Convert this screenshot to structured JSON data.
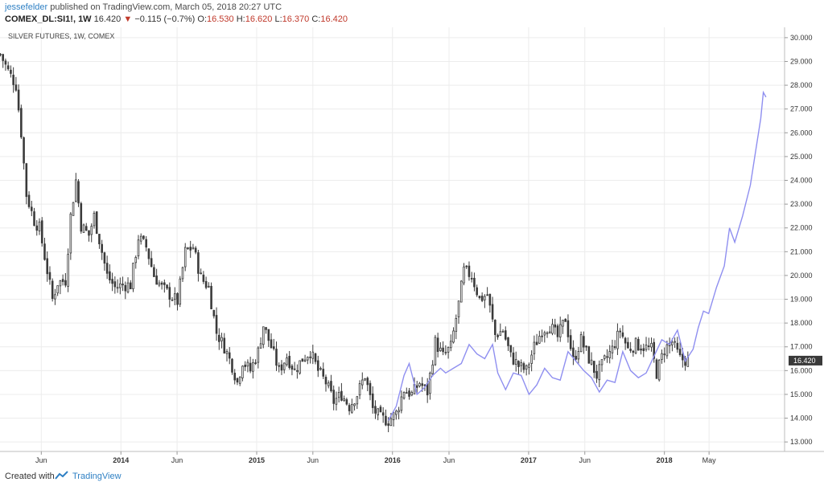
{
  "header": {
    "author": "jessefelder",
    "published_text": "published on TradingView.com, March 05, 2018 20:27 UTC",
    "symbol": "COMEX_DL:SI1!, 1W",
    "last_price": "16.420",
    "change_arrow": "▼",
    "change": "−0.115 (−0.7%)",
    "o_label": "O:",
    "o_value": "16.530",
    "h_label": "H:",
    "h_value": "16.620",
    "l_label": "L:",
    "l_value": "16.370",
    "c_label": "C:",
    "c_value": "16.420"
  },
  "footer": {
    "created_with": "Created with",
    "brand": "TradingView"
  },
  "colors": {
    "candle": "#3a3a3a",
    "overlay_line": "#8f8ff0",
    "grid": "#ececec",
    "last_label_bg": "#3a3a3a"
  },
  "chart_data": {
    "type": "line",
    "title": "SILVER FUTURES, 1W, COMEX",
    "last_value_label": "16.420",
    "ylim": [
      12.6,
      30.3
    ],
    "yticks": [
      "13.000",
      "14.000",
      "15.000",
      "16.000",
      "17.000",
      "18.000",
      "19.000",
      "20.000",
      "21.000",
      "22.000",
      "23.000",
      "24.000",
      "25.000",
      "26.000",
      "27.000",
      "28.000",
      "29.000",
      "30.000"
    ],
    "xticks": [
      {
        "label": "Jun",
        "date": "2013-06-01",
        "bold": false
      },
      {
        "label": "2014",
        "date": "2014-01-01",
        "bold": true
      },
      {
        "label": "Jun",
        "date": "2014-06-01",
        "bold": false
      },
      {
        "label": "2015",
        "date": "2015-01-01",
        "bold": true
      },
      {
        "label": "Jun",
        "date": "2015-06-01",
        "bold": false
      },
      {
        "label": "2016",
        "date": "2016-01-01",
        "bold": true
      },
      {
        "label": "Jun",
        "date": "2016-06-01",
        "bold": false
      },
      {
        "label": "2017",
        "date": "2017-01-01",
        "bold": true
      },
      {
        "label": "Jun",
        "date": "2017-06-01",
        "bold": false
      },
      {
        "label": "2018",
        "date": "2018-01-01",
        "bold": true
      },
      {
        "label": "May",
        "date": "2018-05-01",
        "bold": false
      }
    ],
    "xlim": [
      "2013-02-10",
      "2018-11-20"
    ],
    "grid": true,
    "series": [
      {
        "type": "candlestick",
        "points": [
          {
            "date": "2013-02-11",
            "close": 29.3
          },
          {
            "date": "2013-03-04",
            "close": 28.6
          },
          {
            "date": "2013-03-25",
            "close": 28.0
          },
          {
            "date": "2013-04-08",
            "close": 26.0
          },
          {
            "date": "2013-04-22",
            "close": 23.4
          },
          {
            "date": "2013-05-13",
            "close": 22.3
          },
          {
            "date": "2013-05-27",
            "close": 22.0
          },
          {
            "date": "2013-06-17",
            "close": 20.2
          },
          {
            "date": "2013-07-01",
            "close": 19.0
          },
          {
            "date": "2013-07-15",
            "close": 19.7
          },
          {
            "date": "2013-08-05",
            "close": 19.8
          },
          {
            "date": "2013-08-19",
            "close": 22.5
          },
          {
            "date": "2013-09-02",
            "close": 24.0
          },
          {
            "date": "2013-09-16",
            "close": 22.1
          },
          {
            "date": "2013-10-07",
            "close": 21.7
          },
          {
            "date": "2013-10-21",
            "close": 22.5
          },
          {
            "date": "2013-11-11",
            "close": 21.0
          },
          {
            "date": "2013-11-25",
            "close": 20.0
          },
          {
            "date": "2013-12-16",
            "close": 19.5
          },
          {
            "date": "2014-01-06",
            "close": 19.6
          },
          {
            "date": "2014-01-27",
            "close": 19.6
          },
          {
            "date": "2014-02-17",
            "close": 21.6
          },
          {
            "date": "2014-03-10",
            "close": 21.2
          },
          {
            "date": "2014-03-31",
            "close": 20.0
          },
          {
            "date": "2014-04-21",
            "close": 19.5
          },
          {
            "date": "2014-05-12",
            "close": 19.2
          },
          {
            "date": "2014-06-02",
            "close": 18.9
          },
          {
            "date": "2014-06-23",
            "close": 21.0
          },
          {
            "date": "2014-07-14",
            "close": 21.2
          },
          {
            "date": "2014-08-04",
            "close": 19.9
          },
          {
            "date": "2014-08-25",
            "close": 19.5
          },
          {
            "date": "2014-09-15",
            "close": 17.6
          },
          {
            "date": "2014-10-06",
            "close": 17.0
          },
          {
            "date": "2014-10-27",
            "close": 16.2
          },
          {
            "date": "2014-11-10",
            "close": 15.5
          },
          {
            "date": "2014-11-24",
            "close": 16.4
          },
          {
            "date": "2014-12-15",
            "close": 16.0
          },
          {
            "date": "2015-01-05",
            "close": 16.8
          },
          {
            "date": "2015-01-19",
            "close": 17.9
          },
          {
            "date": "2015-02-09",
            "close": 17.0
          },
          {
            "date": "2015-03-02",
            "close": 16.0
          },
          {
            "date": "2015-03-23",
            "close": 16.6
          },
          {
            "date": "2015-04-13",
            "close": 16.0
          },
          {
            "date": "2015-05-04",
            "close": 16.5
          },
          {
            "date": "2015-05-25",
            "close": 16.8
          },
          {
            "date": "2015-06-15",
            "close": 16.0
          },
          {
            "date": "2015-07-06",
            "close": 15.5
          },
          {
            "date": "2015-07-27",
            "close": 14.7
          },
          {
            "date": "2015-08-17",
            "close": 15.0
          },
          {
            "date": "2015-09-07",
            "close": 14.5
          },
          {
            "date": "2015-09-28",
            "close": 15.0
          },
          {
            "date": "2015-10-19",
            "close": 15.8
          },
          {
            "date": "2015-11-09",
            "close": 14.4
          },
          {
            "date": "2015-11-30",
            "close": 14.0
          },
          {
            "date": "2015-12-21",
            "close": 13.9
          },
          {
            "date": "2016-01-11",
            "close": 14.2
          },
          {
            "date": "2016-02-01",
            "close": 15.2
          },
          {
            "date": "2016-02-22",
            "close": 15.0
          },
          {
            "date": "2016-03-14",
            "close": 15.5
          },
          {
            "date": "2016-04-04",
            "close": 15.1
          },
          {
            "date": "2016-04-25",
            "close": 17.2
          },
          {
            "date": "2016-05-16",
            "close": 16.6
          },
          {
            "date": "2016-06-06",
            "close": 17.0
          },
          {
            "date": "2016-06-27",
            "close": 18.8
          },
          {
            "date": "2016-07-11",
            "close": 20.2
          },
          {
            "date": "2016-08-01",
            "close": 20.0
          },
          {
            "date": "2016-08-22",
            "close": 19.0
          },
          {
            "date": "2016-09-12",
            "close": 19.2
          },
          {
            "date": "2016-10-03",
            "close": 17.5
          },
          {
            "date": "2016-10-24",
            "close": 17.7
          },
          {
            "date": "2016-11-14",
            "close": 16.6
          },
          {
            "date": "2016-12-05",
            "close": 16.2
          },
          {
            "date": "2016-12-26",
            "close": 16.0
          },
          {
            "date": "2017-01-16",
            "close": 17.0
          },
          {
            "date": "2017-02-06",
            "close": 17.7
          },
          {
            "date": "2017-02-27",
            "close": 17.9
          },
          {
            "date": "2017-03-20",
            "close": 17.4
          },
          {
            "date": "2017-04-10",
            "close": 18.2
          },
          {
            "date": "2017-05-01",
            "close": 16.4
          },
          {
            "date": "2017-05-22",
            "close": 17.3
          },
          {
            "date": "2017-06-12",
            "close": 16.5
          },
          {
            "date": "2017-07-03",
            "close": 15.8
          },
          {
            "date": "2017-07-24",
            "close": 16.4
          },
          {
            "date": "2017-08-14",
            "close": 16.9
          },
          {
            "date": "2017-09-04",
            "close": 17.7
          },
          {
            "date": "2017-09-25",
            "close": 16.9
          },
          {
            "date": "2017-10-16",
            "close": 17.1
          },
          {
            "date": "2017-11-06",
            "close": 17.0
          },
          {
            "date": "2017-11-27",
            "close": 16.9
          },
          {
            "date": "2017-12-11",
            "close": 15.9
          },
          {
            "date": "2018-01-01",
            "close": 16.9
          },
          {
            "date": "2018-01-22",
            "close": 17.2
          },
          {
            "date": "2018-02-12",
            "close": 16.5
          },
          {
            "date": "2018-03-05",
            "close": 16.42
          }
        ]
      },
      {
        "type": "line",
        "points": [
          {
            "date": "2015-12-21",
            "value": 13.9
          },
          {
            "date": "2016-01-11",
            "value": 14.5
          },
          {
            "date": "2016-02-01",
            "value": 15.8
          },
          {
            "date": "2016-02-15",
            "value": 16.3
          },
          {
            "date": "2016-03-07",
            "value": 15.0
          },
          {
            "date": "2016-03-28",
            "value": 15.3
          },
          {
            "date": "2016-04-18",
            "value": 15.8
          },
          {
            "date": "2016-05-09",
            "value": 16.1
          },
          {
            "date": "2016-05-23",
            "value": 15.9
          },
          {
            "date": "2016-06-13",
            "value": 16.1
          },
          {
            "date": "2016-07-04",
            "value": 16.3
          },
          {
            "date": "2016-07-25",
            "value": 17.1
          },
          {
            "date": "2016-08-15",
            "value": 16.7
          },
          {
            "date": "2016-09-05",
            "value": 16.5
          },
          {
            "date": "2016-09-26",
            "value": 17.1
          },
          {
            "date": "2016-10-10",
            "value": 15.9
          },
          {
            "date": "2016-10-31",
            "value": 15.2
          },
          {
            "date": "2016-11-21",
            "value": 15.9
          },
          {
            "date": "2016-12-12",
            "value": 15.8
          },
          {
            "date": "2017-01-02",
            "value": 15.0
          },
          {
            "date": "2017-01-23",
            "value": 15.4
          },
          {
            "date": "2017-02-13",
            "value": 16.1
          },
          {
            "date": "2017-03-06",
            "value": 15.7
          },
          {
            "date": "2017-03-27",
            "value": 15.6
          },
          {
            "date": "2017-04-17",
            "value": 16.8
          },
          {
            "date": "2017-05-08",
            "value": 16.4
          },
          {
            "date": "2017-05-29",
            "value": 16.0
          },
          {
            "date": "2017-06-19",
            "value": 15.7
          },
          {
            "date": "2017-07-10",
            "value": 15.1
          },
          {
            "date": "2017-07-31",
            "value": 15.6
          },
          {
            "date": "2017-08-21",
            "value": 15.5
          },
          {
            "date": "2017-09-11",
            "value": 16.8
          },
          {
            "date": "2017-10-02",
            "value": 16.0
          },
          {
            "date": "2017-10-23",
            "value": 15.7
          },
          {
            "date": "2017-11-13",
            "value": 15.9
          },
          {
            "date": "2017-12-04",
            "value": 16.6
          },
          {
            "date": "2017-12-25",
            "value": 17.3
          },
          {
            "date": "2018-01-15",
            "value": 17.1
          },
          {
            "date": "2018-02-05",
            "value": 17.7
          },
          {
            "date": "2018-02-26",
            "value": 16.4
          },
          {
            "date": "2018-03-19",
            "value": 16.9
          },
          {
            "date": "2018-04-02",
            "value": 17.8
          },
          {
            "date": "2018-04-16",
            "value": 18.5
          },
          {
            "date": "2018-04-30",
            "value": 18.4
          },
          {
            "date": "2018-05-21",
            "value": 19.5
          },
          {
            "date": "2018-06-11",
            "value": 20.4
          },
          {
            "date": "2018-06-25",
            "value": 22.0
          },
          {
            "date": "2018-07-09",
            "value": 21.4
          },
          {
            "date": "2018-07-30",
            "value": 22.5
          },
          {
            "date": "2018-08-20",
            "value": 23.8
          },
          {
            "date": "2018-09-03",
            "value": 25.2
          },
          {
            "date": "2018-09-17",
            "value": 26.6
          },
          {
            "date": "2018-09-24",
            "value": 27.7
          },
          {
            "date": "2018-10-01",
            "value": 27.5
          }
        ]
      }
    ]
  }
}
